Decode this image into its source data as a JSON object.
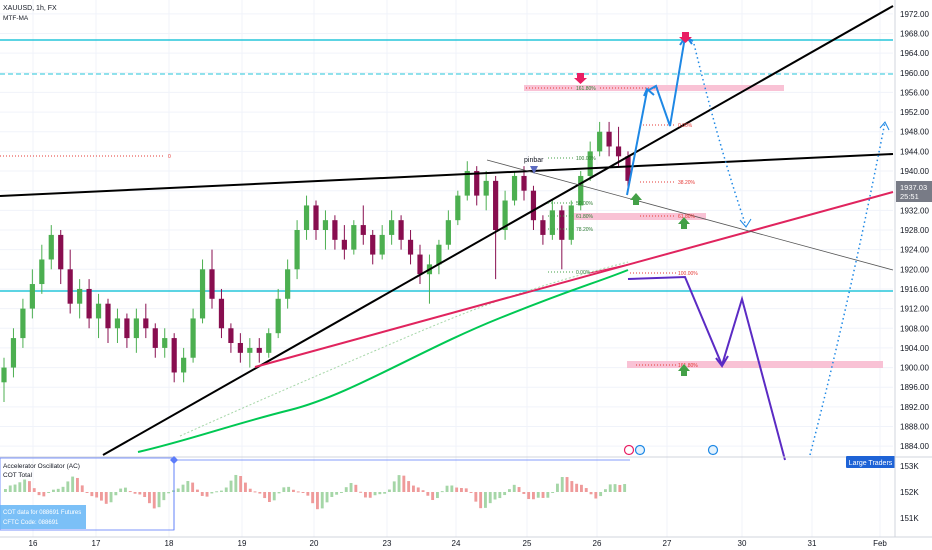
{
  "header": {
    "symbol_line": "XAUUSD, 1h, FX",
    "indicator_line": "MTF-MA"
  },
  "price_axis": {
    "ticks": [
      "1972.00",
      "1968.00",
      "1964.00",
      "1960.00",
      "1956.00",
      "1952.00",
      "1948.00",
      "1944.00",
      "1940.00",
      "1936.00",
      "1932.00",
      "1928.00",
      "1924.00",
      "1920.00",
      "1916.00",
      "1912.00",
      "1908.00",
      "1904.00",
      "1900.00",
      "1896.00",
      "1892.00",
      "1888.00",
      "1884.00"
    ],
    "current_price": "1937.03",
    "countdown": "25:51"
  },
  "date_axis": {
    "ticks": [
      "16",
      "17",
      "18",
      "19",
      "20",
      "23",
      "24",
      "25",
      "26",
      "27",
      "30",
      "31",
      "Feb"
    ]
  },
  "oscillator_pane": {
    "title": "Accelerator Oscillator (AC)",
    "cot_label": "COT Total",
    "cot_box_line1": "COT data for 088691 Futures",
    "cot_box_line2": "CFTC Code: 088691",
    "large_traders_badge": "Large Traders",
    "ticks": [
      "153K",
      "152K",
      "151K"
    ]
  },
  "annotations": {
    "pinbar": "pinbar",
    "fib_left": "0.00%",
    "fib_upper": [
      "161.80%",
      "0.00%",
      "38.20%",
      "61.80%"
    ],
    "fib_small": [
      "100.00%",
      "50.00%",
      "61.80%",
      "78.20%",
      "0.00%"
    ],
    "fib_lower": [
      "100.00%",
      "161.80%"
    ]
  },
  "colors": {
    "bull": "#4caf50",
    "bear": "#880e4f",
    "trendline": "#000000",
    "support_line": "#e91e63",
    "ma_line": "#00c853",
    "cyan_level": "#26c6da",
    "projection_blue": "#1e88e5",
    "projection_purple": "#5b2bc4",
    "fib_band": "#f8bbd0"
  },
  "chart_data": {
    "type": "candlestick",
    "symbol": "XAUUSD",
    "timeframe": "1h",
    "ylim": [
      1882,
      1974
    ],
    "current_price": 1937.03,
    "horizontal_levels": [
      1967,
      1959,
      1916.5
    ],
    "candles": [
      {
        "o": 1897,
        "h": 1902,
        "l": 1893,
        "c": 1900
      },
      {
        "o": 1900,
        "h": 1908,
        "l": 1898,
        "c": 1906
      },
      {
        "o": 1906,
        "h": 1914,
        "l": 1904,
        "c": 1912
      },
      {
        "o": 1912,
        "h": 1920,
        "l": 1910,
        "c": 1917
      },
      {
        "o": 1917,
        "h": 1925,
        "l": 1915,
        "c": 1922
      },
      {
        "o": 1922,
        "h": 1929,
        "l": 1920,
        "c": 1927
      },
      {
        "o": 1927,
        "h": 1928,
        "l": 1917,
        "c": 1920
      },
      {
        "o": 1920,
        "h": 1924,
        "l": 1911,
        "c": 1913
      },
      {
        "o": 1913,
        "h": 1918,
        "l": 1910,
        "c": 1916
      },
      {
        "o": 1916,
        "h": 1918,
        "l": 1908,
        "c": 1910
      },
      {
        "o": 1910,
        "h": 1915,
        "l": 1906,
        "c": 1913
      },
      {
        "o": 1913,
        "h": 1914,
        "l": 1905,
        "c": 1908
      },
      {
        "o": 1908,
        "h": 1912,
        "l": 1905,
        "c": 1910
      },
      {
        "o": 1910,
        "h": 1911,
        "l": 1904,
        "c": 1906
      },
      {
        "o": 1906,
        "h": 1912,
        "l": 1903,
        "c": 1910
      },
      {
        "o": 1910,
        "h": 1913,
        "l": 1906,
        "c": 1908
      },
      {
        "o": 1908,
        "h": 1909,
        "l": 1902,
        "c": 1904
      },
      {
        "o": 1904,
        "h": 1908,
        "l": 1902,
        "c": 1906
      },
      {
        "o": 1906,
        "h": 1907,
        "l": 1897,
        "c": 1899
      },
      {
        "o": 1899,
        "h": 1904,
        "l": 1897,
        "c": 1902
      },
      {
        "o": 1902,
        "h": 1912,
        "l": 1901,
        "c": 1910
      },
      {
        "o": 1910,
        "h": 1922,
        "l": 1909,
        "c": 1920
      },
      {
        "o": 1920,
        "h": 1924,
        "l": 1912,
        "c": 1914
      },
      {
        "o": 1914,
        "h": 1916,
        "l": 1906,
        "c": 1908
      },
      {
        "o": 1908,
        "h": 1909,
        "l": 1903,
        "c": 1905
      },
      {
        "o": 1905,
        "h": 1907,
        "l": 1901,
        "c": 1903
      },
      {
        "o": 1903,
        "h": 1906,
        "l": 1900,
        "c": 1904
      },
      {
        "o": 1904,
        "h": 1906,
        "l": 1901,
        "c": 1903
      },
      {
        "o": 1903,
        "h": 1908,
        "l": 1902,
        "c": 1907
      },
      {
        "o": 1907,
        "h": 1916,
        "l": 1906,
        "c": 1914
      },
      {
        "o": 1914,
        "h": 1922,
        "l": 1912,
        "c": 1920
      },
      {
        "o": 1920,
        "h": 1930,
        "l": 1918,
        "c": 1928
      },
      {
        "o": 1928,
        "h": 1935,
        "l": 1926,
        "c": 1933
      },
      {
        "o": 1933,
        "h": 1934,
        "l": 1926,
        "c": 1928
      },
      {
        "o": 1928,
        "h": 1932,
        "l": 1924,
        "c": 1930
      },
      {
        "o": 1930,
        "h": 1931,
        "l": 1924,
        "c": 1926
      },
      {
        "o": 1926,
        "h": 1929,
        "l": 1922,
        "c": 1924
      },
      {
        "o": 1924,
        "h": 1930,
        "l": 1923,
        "c": 1929
      },
      {
        "o": 1929,
        "h": 1933,
        "l": 1925,
        "c": 1927
      },
      {
        "o": 1927,
        "h": 1928,
        "l": 1921,
        "c": 1923
      },
      {
        "o": 1923,
        "h": 1929,
        "l": 1922,
        "c": 1927
      },
      {
        "o": 1927,
        "h": 1932,
        "l": 1925,
        "c": 1930
      },
      {
        "o": 1930,
        "h": 1931,
        "l": 1924,
        "c": 1926
      },
      {
        "o": 1926,
        "h": 1928,
        "l": 1921,
        "c": 1923
      },
      {
        "o": 1923,
        "h": 1925,
        "l": 1917,
        "c": 1919
      },
      {
        "o": 1919,
        "h": 1923,
        "l": 1913,
        "c": 1921
      },
      {
        "o": 1921,
        "h": 1926,
        "l": 1919,
        "c": 1925
      },
      {
        "o": 1925,
        "h": 1932,
        "l": 1924,
        "c": 1930
      },
      {
        "o": 1930,
        "h": 1936,
        "l": 1929,
        "c": 1935
      },
      {
        "o": 1935,
        "h": 1942,
        "l": 1934,
        "c": 1940
      },
      {
        "o": 1940,
        "h": 1941,
        "l": 1933,
        "c": 1935
      },
      {
        "o": 1935,
        "h": 1940,
        "l": 1932,
        "c": 1938
      },
      {
        "o": 1938,
        "h": 1939,
        "l": 1918,
        "c": 1928
      },
      {
        "o": 1928,
        "h": 1936,
        "l": 1926,
        "c": 1934
      },
      {
        "o": 1934,
        "h": 1940,
        "l": 1933,
        "c": 1939
      },
      {
        "o": 1939,
        "h": 1941,
        "l": 1934,
        "c": 1936
      },
      {
        "o": 1936,
        "h": 1937,
        "l": 1928,
        "c": 1930
      },
      {
        "o": 1930,
        "h": 1931,
        "l": 1925,
        "c": 1927
      },
      {
        "o": 1927,
        "h": 1934,
        "l": 1926,
        "c": 1932
      },
      {
        "o": 1932,
        "h": 1933,
        "l": 1920,
        "c": 1926
      },
      {
        "o": 1926,
        "h": 1934,
        "l": 1925,
        "c": 1933
      },
      {
        "o": 1933,
        "h": 1940,
        "l": 1932,
        "c": 1939
      },
      {
        "o": 1939,
        "h": 1946,
        "l": 1938,
        "c": 1944
      },
      {
        "o": 1944,
        "h": 1950,
        "l": 1943,
        "c": 1948
      },
      {
        "o": 1948,
        "h": 1950,
        "l": 1943,
        "c": 1945
      },
      {
        "o": 1945,
        "h": 1949,
        "l": 1941,
        "c": 1943
      },
      {
        "o": 1943,
        "h": 1944,
        "l": 1936,
        "c": 1938
      }
    ],
    "trendlines": [
      {
        "name": "",
        "from": [
          "15",
          "1942"
        ],
        "to": [
          "Feb+",
          "1944"
        ]
      },
      {
        "name": "",
        "from": [
          "17",
          "1884"
        ],
        "to": [
          "Feb+",
          "1972"
        ]
      },
      {
        "name": "",
        "from": [
          "19",
          "1902"
        ],
        "to": [
          "Feb+",
          "1937"
        ]
      }
    ]
  }
}
